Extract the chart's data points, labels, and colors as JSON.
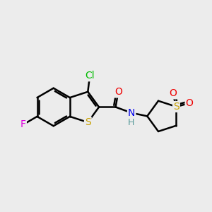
{
  "bg_color": "#ececec",
  "bond_color": "#000000",
  "bond_width": 1.8,
  "atom_colors": {
    "S": "#c8a000",
    "N": "#0000ee",
    "O": "#ee0000",
    "F": "#dd00dd",
    "Cl": "#00bb00",
    "H": "#559999"
  },
  "font_size": 10,
  "xlim": [
    -0.5,
    9.5
  ],
  "ylim": [
    2.0,
    8.5
  ]
}
